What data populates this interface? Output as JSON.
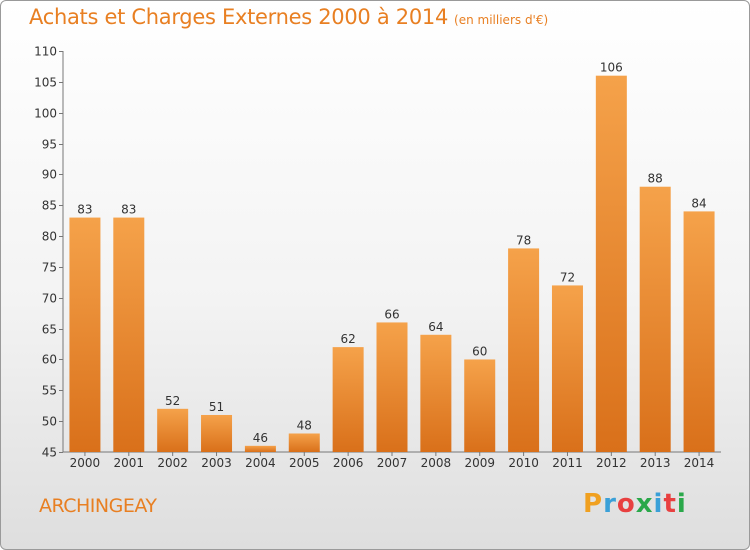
{
  "title": "Achats et Charges Externes 2000 à 2014",
  "unit": "(en milliers d'€)",
  "commune": "ARCHINGEAY",
  "logo": [
    "P",
    "r",
    "o",
    "x",
    "i",
    "t",
    "i"
  ],
  "colors": {
    "accent": "#e87f22",
    "bar_light": "#f5a24a",
    "bar_dark": "#d9701a"
  },
  "chart_data": {
    "type": "bar",
    "categories": [
      "2000",
      "2001",
      "2002",
      "2003",
      "2004",
      "2005",
      "2006",
      "2007",
      "2008",
      "2009",
      "2010",
      "2011",
      "2012",
      "2013",
      "2014"
    ],
    "values": [
      83,
      83,
      52,
      51,
      46,
      48,
      62,
      66,
      64,
      60,
      78,
      72,
      106,
      88,
      84
    ],
    "ylim": [
      45,
      110
    ],
    "yticks": [
      45,
      50,
      55,
      60,
      65,
      70,
      75,
      80,
      85,
      90,
      95,
      100,
      105,
      110
    ],
    "title": "Achats et Charges Externes 2000 à 2014",
    "xlabel": "",
    "ylabel": "",
    "grid": false
  }
}
